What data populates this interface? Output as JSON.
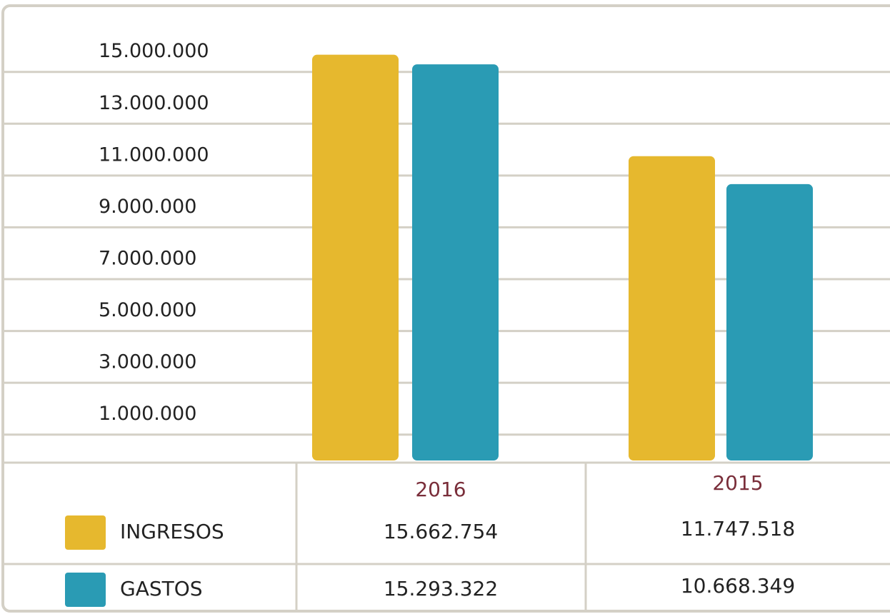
{
  "chart_data": {
    "type": "bar",
    "categories": [
      "2016",
      "2015"
    ],
    "series": [
      {
        "name": "INGRESOS",
        "color": "#e6b82e",
        "values": [
          15662754,
          11747518
        ],
        "value_labels": [
          "15.662.754",
          "11.747.518"
        ]
      },
      {
        "name": "GASTOS",
        "color": "#2a9bb4",
        "values": [
          15293322,
          10668349
        ],
        "value_labels": [
          "15.293.322",
          "10.668.349"
        ]
      }
    ],
    "ylim": [
      0,
      17500000
    ],
    "yticks": [
      {
        "value": 1000000,
        "label": "1.000.000"
      },
      {
        "value": 3000000,
        "label": "3.000.000"
      },
      {
        "value": 5000000,
        "label": "5.000.000"
      },
      {
        "value": 7000000,
        "label": "7.000.000"
      },
      {
        "value": 9000000,
        "label": "9.000.000"
      },
      {
        "value": 11000000,
        "label": "11.000.000"
      },
      {
        "value": 13000000,
        "label": "13.000.000"
      },
      {
        "value": 15000000,
        "label": "15.000.000"
      }
    ],
    "grid": true
  }
}
